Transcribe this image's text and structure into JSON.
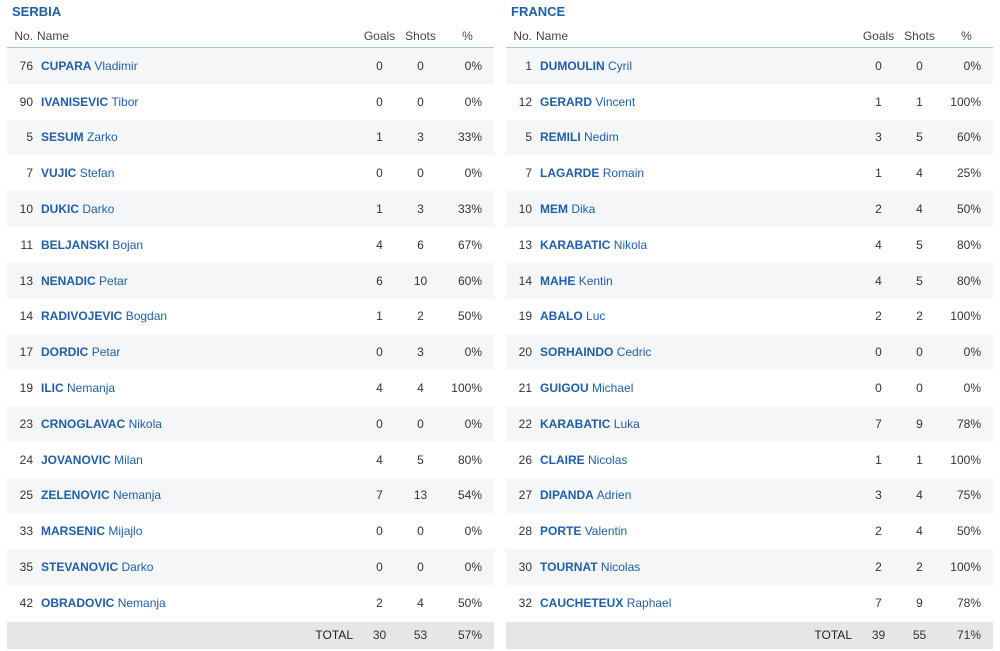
{
  "headers": {
    "no": "No.",
    "name": "Name",
    "goals": "Goals",
    "shots": "Shots",
    "pct": "%"
  },
  "teams": [
    {
      "name": "SERBIA",
      "players": [
        {
          "no": "76",
          "last": "CUPARA",
          "first": "Vladimir",
          "goals": "0",
          "shots": "0",
          "pct": "0%"
        },
        {
          "no": "90",
          "last": "IVANISEVIC",
          "first": "Tibor",
          "goals": "0",
          "shots": "0",
          "pct": "0%"
        },
        {
          "no": "5",
          "last": "SESUM",
          "first": "Zarko",
          "goals": "1",
          "shots": "3",
          "pct": "33%"
        },
        {
          "no": "7",
          "last": "VUJIC",
          "first": "Stefan",
          "goals": "0",
          "shots": "0",
          "pct": "0%"
        },
        {
          "no": "10",
          "last": "DUKIC",
          "first": "Darko",
          "goals": "1",
          "shots": "3",
          "pct": "33%"
        },
        {
          "no": "11",
          "last": "BELJANSKI",
          "first": "Bojan",
          "goals": "4",
          "shots": "6",
          "pct": "67%"
        },
        {
          "no": "13",
          "last": "NENADIC",
          "first": "Petar",
          "goals": "6",
          "shots": "10",
          "pct": "60%"
        },
        {
          "no": "14",
          "last": "RADIVOJEVIC",
          "first": "Bogdan",
          "goals": "1",
          "shots": "2",
          "pct": "50%"
        },
        {
          "no": "17",
          "last": "DORDIC",
          "first": "Petar",
          "goals": "0",
          "shots": "3",
          "pct": "0%"
        },
        {
          "no": "19",
          "last": "ILIC",
          "first": "Nemanja",
          "goals": "4",
          "shots": "4",
          "pct": "100%"
        },
        {
          "no": "23",
          "last": "CRNOGLAVAC",
          "first": "Nikola",
          "goals": "0",
          "shots": "0",
          "pct": "0%"
        },
        {
          "no": "24",
          "last": "JOVANOVIC",
          "first": "Milan",
          "goals": "4",
          "shots": "5",
          "pct": "80%"
        },
        {
          "no": "25",
          "last": "ZELENOVIC",
          "first": "Nemanja",
          "goals": "7",
          "shots": "13",
          "pct": "54%"
        },
        {
          "no": "33",
          "last": "MARSENIC",
          "first": "Mijajlo",
          "goals": "0",
          "shots": "0",
          "pct": "0%"
        },
        {
          "no": "35",
          "last": "STEVANOVIC",
          "first": "Darko",
          "goals": "0",
          "shots": "0",
          "pct": "0%"
        },
        {
          "no": "42",
          "last": "OBRADOVIC",
          "first": "Nemanja",
          "goals": "2",
          "shots": "4",
          "pct": "50%"
        }
      ],
      "total": {
        "label": "TOTAL",
        "goals": "30",
        "shots": "53",
        "pct": "57%"
      }
    },
    {
      "name": "FRANCE",
      "players": [
        {
          "no": "1",
          "last": "DUMOULIN",
          "first": "Cyril",
          "goals": "0",
          "shots": "0",
          "pct": "0%"
        },
        {
          "no": "12",
          "last": "GERARD",
          "first": "Vincent",
          "goals": "1",
          "shots": "1",
          "pct": "100%"
        },
        {
          "no": "5",
          "last": "REMILI",
          "first": "Nedim",
          "goals": "3",
          "shots": "5",
          "pct": "60%"
        },
        {
          "no": "7",
          "last": "LAGARDE",
          "first": "Romain",
          "goals": "1",
          "shots": "4",
          "pct": "25%"
        },
        {
          "no": "10",
          "last": "MEM",
          "first": "Dika",
          "goals": "2",
          "shots": "4",
          "pct": "50%"
        },
        {
          "no": "13",
          "last": "KARABATIC",
          "first": "Nikola",
          "goals": "4",
          "shots": "5",
          "pct": "80%"
        },
        {
          "no": "14",
          "last": "MAHE",
          "first": "Kentin",
          "goals": "4",
          "shots": "5",
          "pct": "80%"
        },
        {
          "no": "19",
          "last": "ABALO",
          "first": "Luc",
          "goals": "2",
          "shots": "2",
          "pct": "100%"
        },
        {
          "no": "20",
          "last": "SORHAINDO",
          "first": "Cedric",
          "goals": "0",
          "shots": "0",
          "pct": "0%"
        },
        {
          "no": "21",
          "last": "GUIGOU",
          "first": "Michael",
          "goals": "0",
          "shots": "0",
          "pct": "0%"
        },
        {
          "no": "22",
          "last": "KARABATIC",
          "first": "Luka",
          "goals": "7",
          "shots": "9",
          "pct": "78%"
        },
        {
          "no": "26",
          "last": "CLAIRE",
          "first": "Nicolas",
          "goals": "1",
          "shots": "1",
          "pct": "100%"
        },
        {
          "no": "27",
          "last": "DIPANDA",
          "first": "Adrien",
          "goals": "3",
          "shots": "4",
          "pct": "75%"
        },
        {
          "no": "28",
          "last": "PORTE",
          "first": "Valentin",
          "goals": "2",
          "shots": "4",
          "pct": "50%"
        },
        {
          "no": "30",
          "last": "TOURNAT",
          "first": "Nicolas",
          "goals": "2",
          "shots": "2",
          "pct": "100%"
        },
        {
          "no": "32",
          "last": "CAUCHETEUX",
          "first": "Raphael",
          "goals": "7",
          "shots": "9",
          "pct": "78%"
        }
      ],
      "total": {
        "label": "TOTAL",
        "goals": "39",
        "shots": "55",
        "pct": "71%"
      }
    }
  ]
}
